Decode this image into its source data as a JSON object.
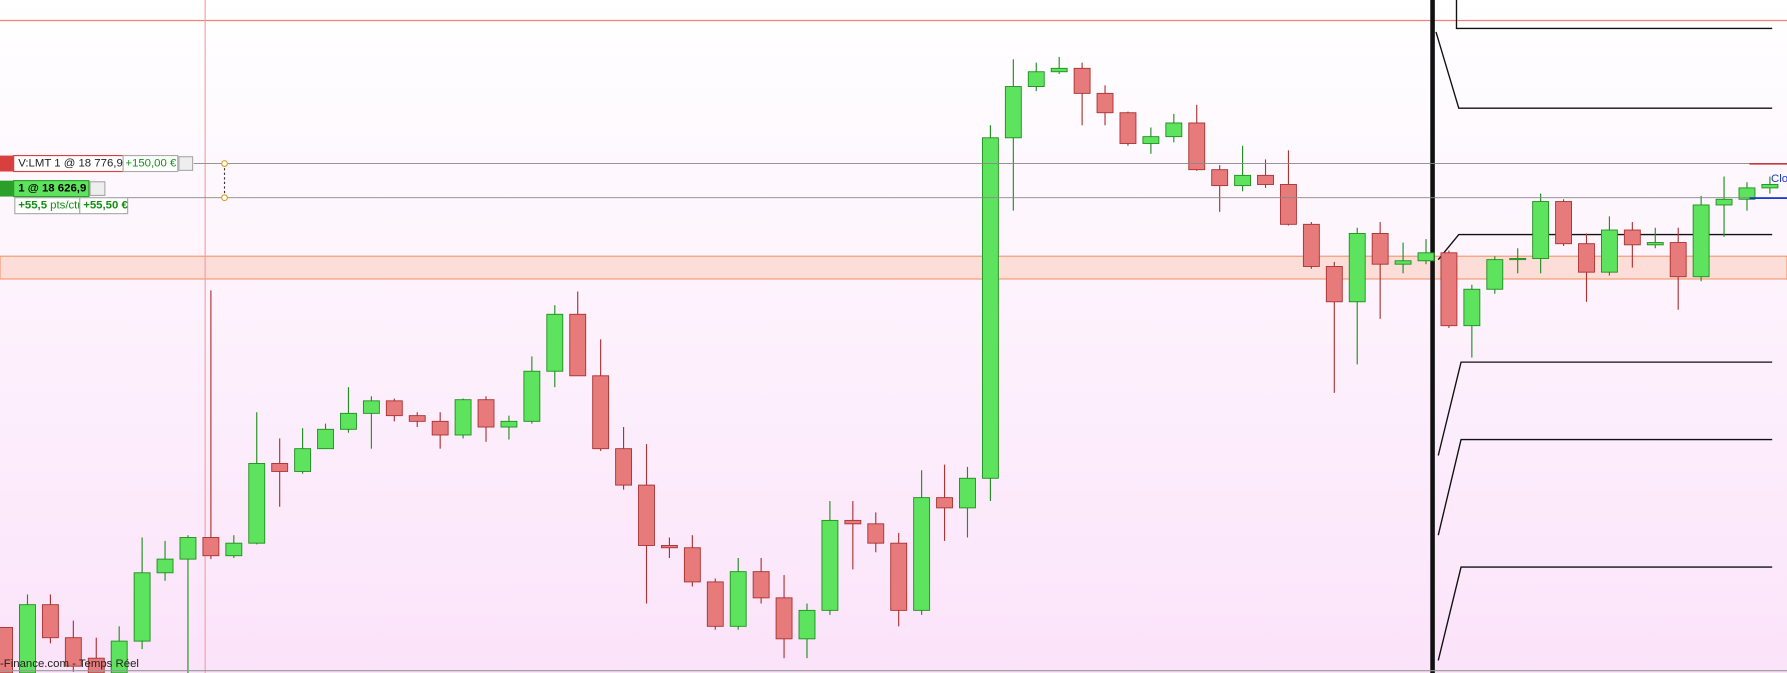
{
  "chart_data": {
    "type": "candlestick",
    "open": [
      16740,
      16540,
      16840,
      16695,
      16605,
      16540,
      16680,
      16980,
      17040,
      17135,
      17055,
      17110,
      17460,
      17425,
      17525,
      17610,
      17680,
      17735,
      17670,
      17645,
      17585,
      17740,
      17620,
      17645,
      17865,
      18115,
      17845,
      17525,
      17365,
      17100,
      17090,
      16940,
      16745,
      16985,
      16870,
      16690,
      16815,
      17210,
      17195,
      17110,
      16815,
      17310,
      17265,
      17395,
      18890,
      19115,
      19180,
      19195,
      19085,
      19000,
      18865,
      18895,
      18955,
      18750,
      18680,
      18725,
      18685,
      18510,
      18325,
      18170,
      18470,
      18335,
      18350,
      18385,
      18065,
      18225,
      18355,
      18360,
      18610,
      18425,
      18300,
      18485,
      18420,
      18430,
      18280,
      18595,
      18620,
      18670
    ],
    "high": [
      16740,
      16885,
      16885,
      16770,
      16695,
      16745,
      17135,
      17120,
      17145,
      18220,
      17145,
      17685,
      17570,
      17615,
      17635,
      17795,
      17755,
      17745,
      17685,
      17685,
      17745,
      17755,
      17670,
      17930,
      18155,
      18215,
      18005,
      17620,
      17545,
      17135,
      17145,
      16955,
      17045,
      17045,
      16970,
      16845,
      17295,
      17295,
      17245,
      17155,
      17430,
      17455,
      17445,
      18945,
      19235,
      19220,
      19245,
      19220,
      19120,
      19005,
      18935,
      18995,
      19035,
      18770,
      18855,
      18795,
      18835,
      18520,
      18345,
      18495,
      18520,
      18430,
      18445,
      18395,
      18245,
      18370,
      18405,
      18645,
      18620,
      18470,
      18545,
      18520,
      18495,
      18495,
      18635,
      18720,
      18695,
      18720
    ],
    "low": [
      16540,
      16540,
      16670,
      16545,
      16540,
      16540,
      16645,
      16945,
      16540,
      17040,
      17045,
      17105,
      17270,
      17415,
      17525,
      17595,
      17525,
      17645,
      17620,
      17525,
      17570,
      17555,
      17565,
      17635,
      17795,
      17845,
      17515,
      17345,
      16845,
      17045,
      16920,
      16730,
      16730,
      16845,
      16605,
      16605,
      16795,
      16995,
      17070,
      16745,
      16795,
      17120,
      17135,
      17295,
      18570,
      19095,
      19170,
      18945,
      18945,
      18855,
      18820,
      18870,
      18745,
      18565,
      18655,
      18670,
      18505,
      18315,
      17770,
      17895,
      18095,
      18295,
      18335,
      18055,
      17925,
      18205,
      18295,
      18295,
      18415,
      18170,
      18285,
      18320,
      18405,
      18135,
      18260,
      18455,
      18570,
      18645
    ],
    "close": [
      16540,
      16840,
      16695,
      16570,
      16540,
      16680,
      16980,
      17040,
      17135,
      17055,
      17110,
      17460,
      17425,
      17525,
      17610,
      17680,
      17735,
      17670,
      17645,
      17585,
      17740,
      17620,
      17645,
      17865,
      18115,
      17845,
      17525,
      17365,
      17100,
      17090,
      16940,
      16745,
      16985,
      16870,
      16690,
      16815,
      17210,
      17195,
      17110,
      16815,
      17310,
      17265,
      17395,
      18890,
      19115,
      19180,
      19195,
      19085,
      19000,
      18865,
      18895,
      18955,
      18750,
      18680,
      18725,
      18685,
      18510,
      18325,
      18170,
      18470,
      18335,
      18350,
      18385,
      18065,
      18225,
      18355,
      18360,
      18610,
      18425,
      18300,
      18485,
      18420,
      18430,
      18280,
      18595,
      18620,
      18670,
      18685
    ],
    "up_color": "#5ee35e",
    "down_color": "#e77a7a",
    "ylim": [
      16540,
      19495
    ],
    "orders": [
      {
        "label": "V:LMT  1  @  18 776,9",
        "pnl": "+150,00 €",
        "price": 18776.9
      },
      {
        "label": "1  @  18 626,9",
        "points": "+55,5",
        "points_unit": "pts/ctr",
        "pnl": "+55,50 €",
        "price": 18626.9
      }
    ],
    "close_tag": "Clo",
    "source": "-Finance.com - Temps Réel"
  }
}
